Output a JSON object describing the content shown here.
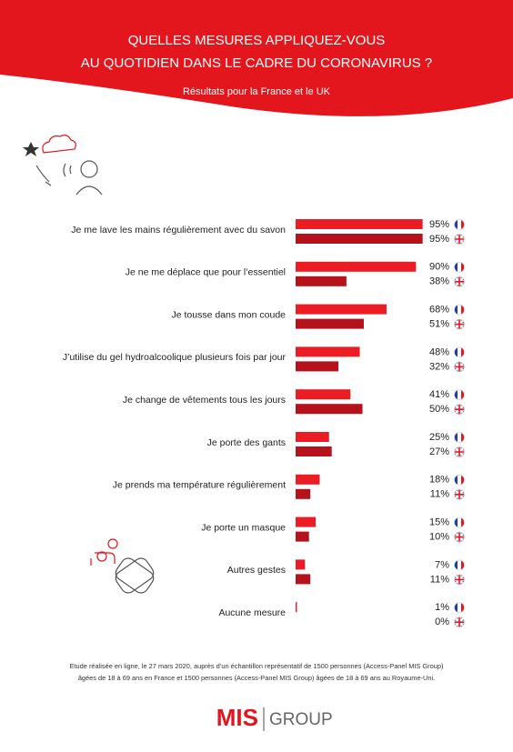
{
  "chart_data": {
    "type": "bar",
    "orientation": "horizontal",
    "title": [
      "QUELLES MESURES APPLIQUEZ-VOUS",
      "AU QUOTIDIEN DANS LE CADRE DU CORONAVIRUS ?"
    ],
    "subtitle": "Résultats pour la France et le UK",
    "categories": [
      "Je me lave les mains régulièrement avec du savon",
      "Je ne me déplace que pour l’essentiel",
      "Je tousse dans mon coude",
      "J’utilise du gel hydroalcoolique plusieurs fois par jour",
      "Je change de vêtements tous les jours",
      "Je porte des gants",
      "Je prends ma température régulièrement",
      "Je porte un masque",
      "Autres gestes",
      "Aucune mesure"
    ],
    "series": [
      {
        "color": "#ec1c24",
        "values": [
          95,
          90,
          68,
          48,
          41,
          25,
          18,
          15,
          7,
          1
        ],
        "value_labels": [
          "95%",
          "90%",
          "68%",
          "48%",
          "41%",
          "25%",
          "18%",
          "15%",
          "7%",
          "1%"
        ]
      },
      {
        "color": "#b5121b",
        "values": [
          95,
          38,
          51,
          32,
          50,
          27,
          11,
          10,
          11,
          0
        ],
        "value_labels": [
          "95%",
          "38%",
          "51%",
          "32%",
          "50%",
          "27%",
          "11%",
          "10%",
          "11%",
          "0%"
        ]
      }
    ],
    "xlim": [
      0,
      100
    ],
    "footnote": [
      "Etude réalisée en ligne, le 27 mars 2020, auprès d’un échantillon représentatif de 1500 personnes (Access-Panel MIS Group)",
      "âgées de 18 à 69 ans en France et 1500 personnes (Access-Panel MIS Group) âgées de 18 à 69 ans au Royaume-Uni."
    ],
    "logo": [
      "MIS",
      "GROUP"
    ]
  }
}
